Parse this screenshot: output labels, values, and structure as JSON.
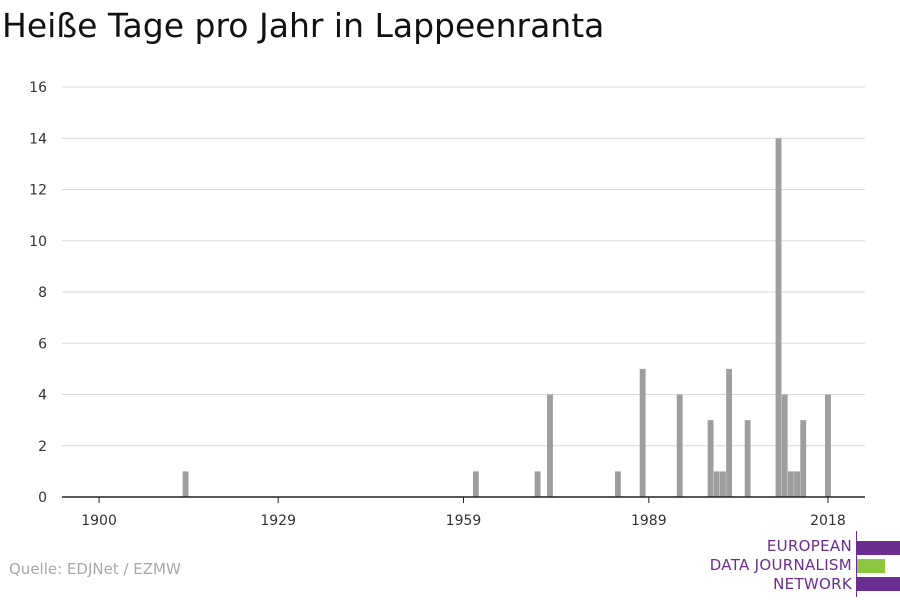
{
  "title": "Heiße Tage pro Jahr in Lappeenranta",
  "source": "Quelle: EDJNet / EZMW",
  "logo": {
    "line1": "EUROPEAN",
    "line2": "DATA JOURNALISM",
    "line3": "NETWORK"
  },
  "colors": {
    "bar": "#9e9e9e",
    "grid": "#d9d9d9",
    "axis": "#222222",
    "logo_purple": "#6b2d8f",
    "logo_green": "#8cc63f"
  },
  "chart_data": {
    "type": "bar",
    "title": "Heiße Tage pro Jahr in Lappeenranta",
    "xlabel": "",
    "ylabel": "",
    "xlim": [
      1894,
      2024
    ],
    "ylim": [
      0,
      16
    ],
    "yticks": [
      0,
      2,
      4,
      6,
      8,
      10,
      12,
      14,
      16
    ],
    "xticks": [
      1900,
      1929,
      1959,
      1989,
      2018
    ],
    "grid": true,
    "x": [
      1914,
      1961,
      1971,
      1973,
      1984,
      1988,
      1994,
      1999,
      2000,
      2001,
      2002,
      2005,
      2010,
      2011,
      2012,
      2013,
      2014,
      2018
    ],
    "values": [
      1,
      1,
      1,
      4,
      1,
      5,
      4,
      3,
      1,
      1,
      5,
      3,
      14,
      4,
      1,
      1,
      3,
      4
    ]
  }
}
